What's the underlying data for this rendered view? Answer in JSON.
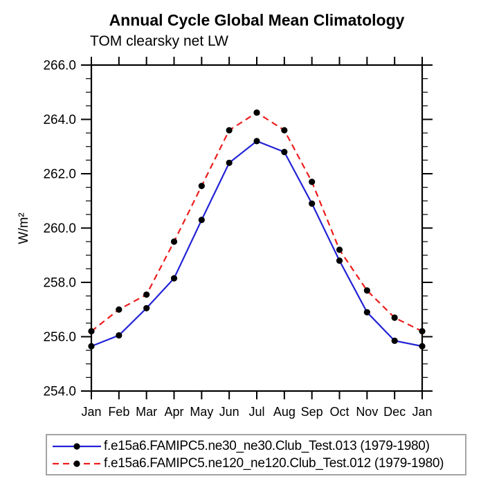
{
  "chart_data": {
    "type": "line",
    "title": "Annual Cycle Global Mean Climatology",
    "subtitle": "TOM clearsky net LW",
    "xlabel": "",
    "ylabel": "W/m²",
    "categories": [
      "Jan",
      "Feb",
      "Mar",
      "Apr",
      "May",
      "Jun",
      "Jul",
      "Aug",
      "Sep",
      "Oct",
      "Nov",
      "Dec",
      "Jan"
    ],
    "ylim": [
      254.0,
      266.0
    ],
    "ytick_major_step": 2.0,
    "ytick_minor_step": 0.5,
    "ytick_labels": [
      "254.0",
      "256.0",
      "258.0",
      "260.0",
      "262.0",
      "264.0",
      "266.0"
    ],
    "grid": false,
    "legend_position": "bottom",
    "axis_color": "#000000",
    "series": [
      {
        "name": "f.e15a6.FAMIPC5.ne30_ne30.Club_Test.013 (1979-1980)",
        "color": "#2222d6",
        "line_style": "solid",
        "marker": "circle",
        "marker_color": "#000000",
        "values": [
          255.65,
          256.05,
          257.05,
          258.15,
          260.3,
          262.4,
          263.2,
          262.8,
          260.9,
          258.8,
          256.9,
          255.85,
          255.65
        ]
      },
      {
        "name": "f.e15a6.FAMIPC5.ne120_ne120.Club_Test.012 (1979-1980)",
        "color": "#ee1b1b",
        "line_style": "dashed",
        "marker": "circle",
        "marker_color": "#000000",
        "values": [
          256.2,
          257.0,
          257.55,
          259.5,
          261.55,
          263.6,
          264.25,
          263.6,
          261.7,
          259.2,
          257.7,
          256.7,
          256.2
        ]
      }
    ]
  }
}
